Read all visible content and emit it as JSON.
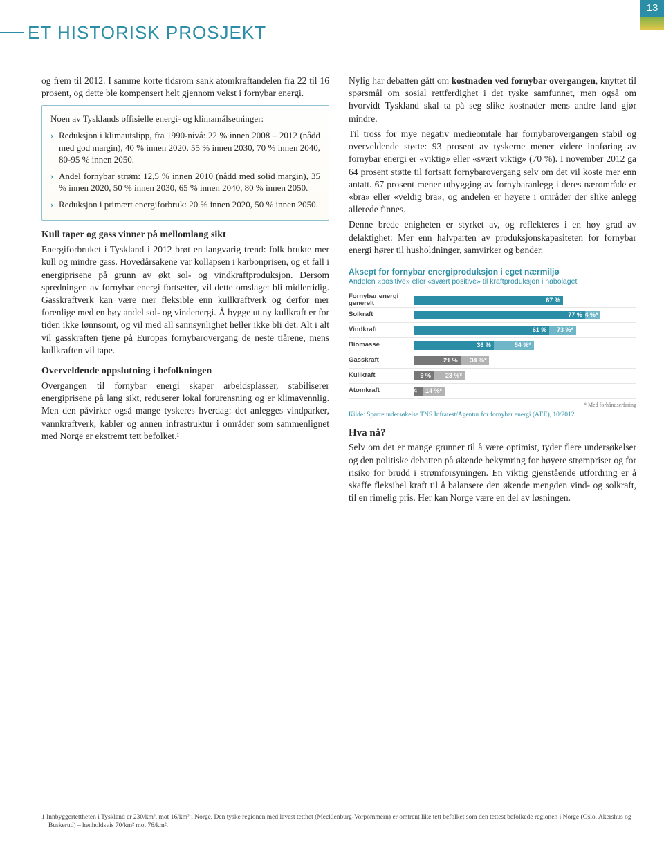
{
  "page_number": "13",
  "title": "ET HISTORISK PROSJEKT",
  "colA": {
    "p1": "og frem til 2012. I samme korte tidsrom sank atomkraftandelen fra 22 til 16 prosent, og dette ble kompensert helt gjennom vekst i fornybar energi.",
    "callout": {
      "lead": "Noen av Tysklands offisielle energi- og klimamålsetninger:",
      "b1": "Reduksjon i klimautslipp, fra 1990-nivå: 22 % innen 2008 – 2012 (nådd med god margin), 40 % innen 2020, 55 % innen 2030, 70 % innen 2040, 80-95 % innen 2050.",
      "b2": "Andel fornybar strøm: 12,5 % innen 2010 (nådd med solid margin), 35 % innen 2020, 50 % innen 2030, 65 % innen 2040, 80 % innen 2050.",
      "b3": "Reduksjon i primært energiforbruk: 20 % innen 2020, 50 % innen 2050."
    },
    "h1": "Kull taper og gass vinner på mellomlang sikt",
    "p2": "Energiforbruket i Tyskland i 2012 brøt en langvarig trend: folk brukte mer kull og mindre gass. Hovedårsakene var kollapsen i karbonprisen, og et fall i energiprisene på grunn av økt sol- og vindkraftproduksjon. Dersom spredningen av fornybar energi fortsetter, vil dette omslaget bli midlertidig. Gasskraftverk kan være mer fleksible enn kullkraftverk og derfor mer forenlige med en høy andel sol- og vindenergi. Å bygge ut ny kullkraft er for tiden ikke lønnsomt, og vil med all sannsynlighet heller ikke bli det. Alt i alt vil gasskraften tjene på Europas fornybarovergang de neste tiårene, mens kullkraften vil tape.",
    "h2": "Overveldende oppslutning i befolkningen",
    "p3": "Overgangen til fornybar energi skaper arbeidsplasser, stabiliserer energiprisene på lang sikt, reduserer lokal forurensning og er klimavennlig. Men den påvirker også mange tyskeres hverdag: det anlegges vindparker, vannkraftverk, kabler og annen infrastruktur i områder som sammenlignet med Norge er ekstremt tett befolket.¹"
  },
  "colB": {
    "p1": "Nylig har debatten gått om kostnaden ved fornybar overgangen, knyttet til spørsmål om sosial rettferdighet i det tyske samfunnet, men også om hvorvidt Tyskland skal ta på seg slike kostnader mens andre land gjør mindre.",
    "p2": "Til tross for mye negativ medieomtale har fornybarovergangen stabil og overveldende støtte: 93 prosent av tyskerne mener videre innføring av fornybar energi er «viktig» eller «svært viktig» (70 %). I november 2012 ga 64 prosent støtte til fortsatt fornybarovergang selv om det vil koste mer enn antatt. 67 prosent mener utbygging av fornybaranlegg i deres nærområde er «bra» eller «veldig bra», og andelen er høyere i områder der slike anlegg allerede finnes.",
    "p3": "Denne brede enigheten er styrket av, og reflekteres i en høy grad av delaktighet: Mer enn halvparten av produksjonskapasiteten for fornybar energi hører til husholdninger, samvirker og bønder.",
    "chart_title": "Aksept for fornybar energiproduksjon i eget nærmiljø",
    "chart_sub": "Andelen «positive» eller «svært positive» til kraftproduksjon i nabolaget",
    "chart": {
      "rows": [
        {
          "label": "Fornybar energi generelt",
          "v1": 67,
          "c1": "#2b8ea6",
          "v2": null
        },
        {
          "label": "Solkraft",
          "v1": 77,
          "c1": "#2b8ea6",
          "v2": 84,
          "c2": "#6fb6c9"
        },
        {
          "label": "Vindkraft",
          "v1": 61,
          "c1": "#2b8ea6",
          "v2": 73,
          "c2": "#6fb6c9"
        },
        {
          "label": "Biomasse",
          "v1": 36,
          "c1": "#2b8ea6",
          "v2": 54,
          "c2": "#6fb6c9"
        },
        {
          "label": "Gasskraft",
          "v1": 21,
          "c1": "#777777",
          "v2": 34,
          "c2": "#b3b3b3"
        },
        {
          "label": "Kullkraft",
          "v1": 9,
          "c1": "#777777",
          "v2": 23,
          "c2": "#b3b3b3"
        },
        {
          "label": "Atomkraft",
          "v1": 4,
          "c1": "#777777",
          "v2": 14,
          "c2": "#b3b3b3"
        }
      ],
      "max": 100,
      "note": "* Med forhåndserfaring",
      "source": "Kilde: Spørreundersøkelse TNS Infratest/Agentur for fornybar energi (AEE), 10/2012"
    },
    "h_hva": "Hva nå?",
    "p4": "Selv om det er mange grunner til å være optimist, tyder flere undersøkelser og den politiske debatten på økende bekymring for høyere strømpriser og for risiko for brudd i strømforsyningen. En viktig gjenstående utfordring er å skaffe fleksibel kraft til å balansere den økende mengden vind- og solkraft, til en rimelig pris. Her kan Norge være en del av løsningen."
  },
  "footnote": "1 Innbyggertettheten i Tyskland er 230/km², mot 16/km² i Norge. Den tyske regionen med lavest tetthet (Mecklenburg-Vorpommern) er omtrent like tett befolket som den tettest befolkede regionen i Norge (Oslo, Akershus og Buskerud) – henholdsvis 70/km² mot 76/km²."
}
